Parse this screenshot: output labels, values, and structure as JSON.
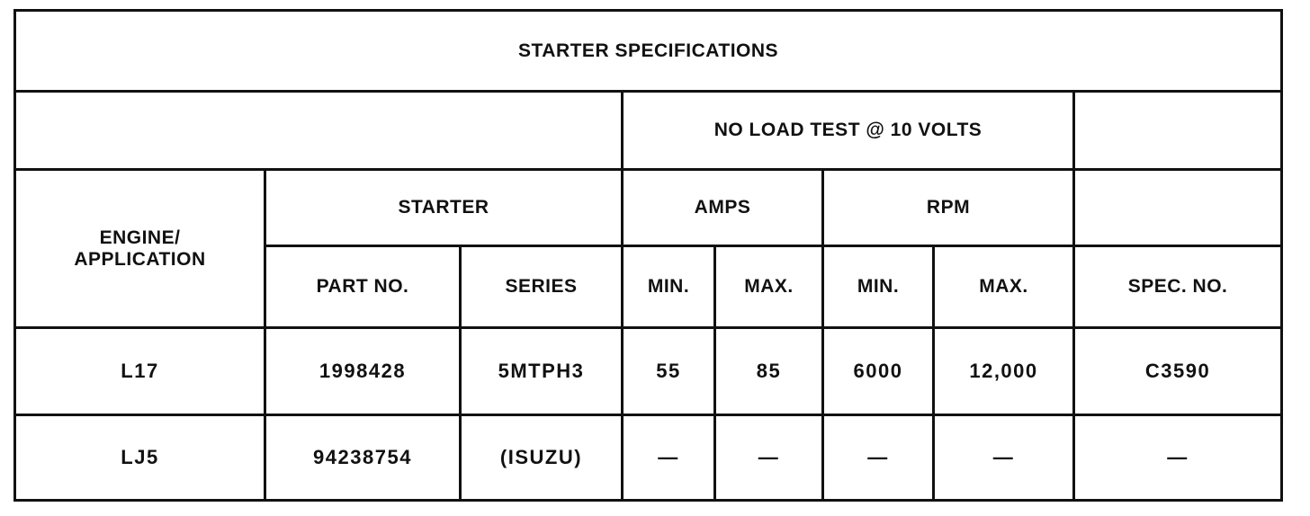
{
  "title": "STARTER SPECIFICATIONS",
  "group_header": "NO LOAD TEST @ 10 VOLTS",
  "headers": {
    "engine": "ENGINE/ APPLICATION",
    "engine_line1": "ENGINE/",
    "engine_line2": "APPLICATION",
    "starter": "STARTER",
    "part_no": "PART NO.",
    "series": "SERIES",
    "amps": "AMPS",
    "rpm": "RPM",
    "amps_min": "MIN.",
    "amps_max": "MAX.",
    "rpm_min": "MIN.",
    "rpm_max": "MAX.",
    "spec_no": "SPEC. NO."
  },
  "rows": [
    {
      "engine": "L17",
      "part_no": "1998428",
      "series": "5MTPH3",
      "amps_min": "55",
      "amps_max": "85",
      "rpm_min": "6000",
      "rpm_max": "12,000",
      "spec_no": "C3590"
    },
    {
      "engine": "LJ5",
      "part_no": "94238754",
      "series": "(ISUZU)",
      "amps_min": "—",
      "amps_max": "—",
      "rpm_min": "—",
      "rpm_max": "—",
      "spec_no": "—"
    }
  ]
}
